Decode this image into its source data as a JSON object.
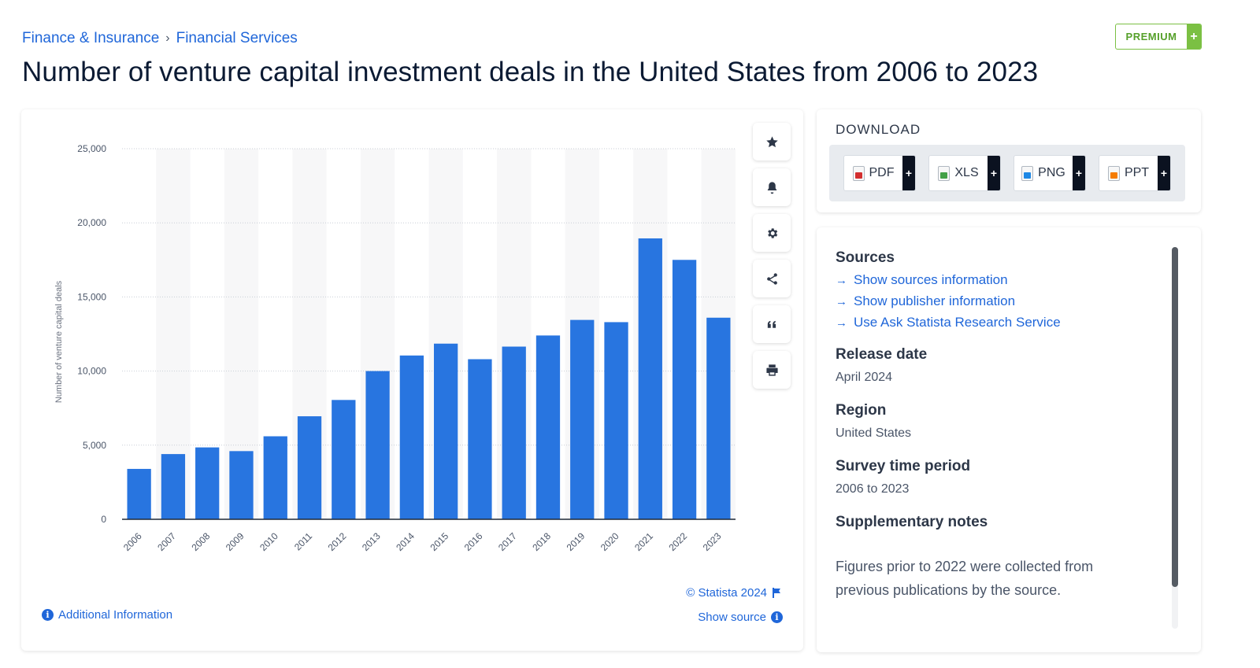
{
  "breadcrumb": {
    "items": [
      "Finance & Insurance",
      "Financial Services"
    ],
    "separator": "›"
  },
  "premium": {
    "label": "PREMIUM",
    "plus": "+"
  },
  "page_title": "Number of venture capital investment deals in the United States from 2006 to 2023",
  "chart_data": {
    "type": "bar",
    "title": "",
    "xlabel": "",
    "ylabel": "Number of venture capital deals",
    "categories": [
      "2006",
      "2007",
      "2008",
      "2009",
      "2010",
      "2011",
      "2012",
      "2013",
      "2014",
      "2015",
      "2016",
      "2017",
      "2018",
      "2019",
      "2020",
      "2021",
      "2022",
      "2023"
    ],
    "values": [
      3400,
      4400,
      4850,
      4600,
      5600,
      6950,
      8050,
      10000,
      11050,
      11850,
      10800,
      11650,
      12400,
      13450,
      13300,
      18950,
      17500,
      13600
    ],
    "y_ticks": [
      "0",
      "5,000",
      "10,000",
      "15,000",
      "20,000",
      "25,000"
    ],
    "ylim": [
      0,
      25000
    ],
    "bar_color": "#2875e0",
    "grid": true,
    "legend": false
  },
  "tools": [
    "star-icon",
    "bell-icon",
    "gear-icon",
    "share-icon",
    "quote-icon",
    "print-icon"
  ],
  "credit": "© Statista 2024",
  "show_source": "Show source",
  "additional_info": "Additional Information",
  "download": {
    "title": "DOWNLOAD",
    "buttons": [
      {
        "label": "PDF",
        "color": "#d32f2f"
      },
      {
        "label": "XLS",
        "color": "#43a047"
      },
      {
        "label": "PNG",
        "color": "#1e88e5"
      },
      {
        "label": "PPT",
        "color": "#f57c00"
      }
    ],
    "plus": "+"
  },
  "info": {
    "sources_heading": "Sources",
    "source_links": [
      "Show sources information",
      "Show publisher information",
      "Use Ask Statista Research Service"
    ],
    "release_heading": "Release date",
    "release_value": "April 2024",
    "region_heading": "Region",
    "region_value": "United States",
    "survey_heading": "Survey time period",
    "survey_value": "2006 to 2023",
    "notes_heading": "Supplementary notes",
    "notes_text": "Figures prior to 2022 were collected from previous publications by the source."
  }
}
